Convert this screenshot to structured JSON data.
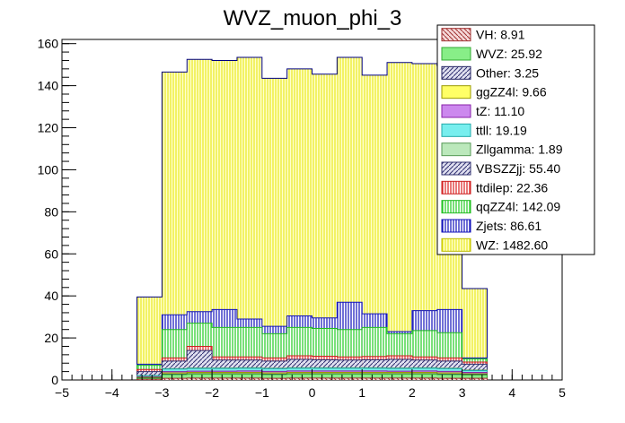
{
  "chart_data": {
    "type": "bar",
    "title": "WVZ_muon_phi_3",
    "xlabel": "",
    "ylabel": "",
    "xlim": [
      -5,
      5
    ],
    "ylim": [
      0,
      162
    ],
    "x_ticks": [
      "−5",
      "−4",
      "−3",
      "−2",
      "−1",
      "0",
      "1",
      "2",
      "3",
      "4",
      "5"
    ],
    "y_ticks": [
      "0",
      "20",
      "40",
      "60",
      "80",
      "100",
      "120",
      "140",
      "160"
    ],
    "bin_edges": [
      -3.5,
      -3.0,
      -2.5,
      -2.0,
      -1.5,
      -1.0,
      -0.5,
      0.0,
      0.5,
      1.0,
      1.5,
      2.0,
      2.5,
      3.0,
      3.5
    ],
    "stack_order": "bottom-to-top cumulative totals",
    "series": [
      {
        "name": "VH",
        "label": "VH: 8.91",
        "pattern": "hatch-diag-down",
        "color": "#a03030",
        "fill": "#f2c8c8",
        "cumulative": [
          0.3,
          0.8,
          0.9,
          0.9,
          0.9,
          0.8,
          0.9,
          0.9,
          0.9,
          0.9,
          0.9,
          0.9,
          0.8,
          0.8
        ]
      },
      {
        "name": "WVZ",
        "label": "WVZ: 25.92",
        "pattern": "solid",
        "color": "#33aa33",
        "fill": "#88ee88",
        "cumulative": [
          0.8,
          2.6,
          2.8,
          2.8,
          2.8,
          2.6,
          2.8,
          2.8,
          2.8,
          2.8,
          2.8,
          2.8,
          2.6,
          2.4
        ]
      },
      {
        "name": "Other",
        "label": "Other: 3.25",
        "pattern": "hatch-diag-up",
        "color": "#202060",
        "fill": "#b8b8e8",
        "cumulative": [
          0.9,
          2.8,
          3.0,
          3.0,
          3.0,
          2.8,
          3.0,
          3.0,
          3.0,
          3.0,
          3.0,
          3.0,
          2.8,
          2.6
        ]
      },
      {
        "name": "ggZZ4l",
        "label": "ggZZ4l: 9.66",
        "pattern": "solid",
        "color": "#999900",
        "fill": "#ffff66",
        "cumulative": [
          1.2,
          3.4,
          3.6,
          3.6,
          3.6,
          3.4,
          3.6,
          3.6,
          3.6,
          3.6,
          3.6,
          3.6,
          3.4,
          3.0
        ]
      },
      {
        "name": "tZ",
        "label": "tZ: 11.10",
        "pattern": "solid",
        "color": "#8822aa",
        "fill": "#cc88ee",
        "cumulative": [
          1.5,
          4.0,
          4.2,
          4.2,
          4.3,
          4.1,
          4.3,
          4.3,
          4.3,
          4.3,
          4.2,
          4.3,
          4.1,
          3.6
        ]
      },
      {
        "name": "ttll",
        "label": "ttll: 19.19",
        "pattern": "solid",
        "color": "#22aaaa",
        "fill": "#77eeee",
        "cumulative": [
          2.0,
          5.2,
          5.5,
          5.5,
          5.6,
          5.4,
          5.6,
          5.6,
          5.6,
          5.6,
          5.5,
          5.6,
          5.4,
          4.5
        ]
      },
      {
        "name": "Zllgamma",
        "label": "Zllgamma: 1.89",
        "pattern": "solid",
        "color": "#559955",
        "fill": "#bbe8bb",
        "cumulative": [
          2.1,
          5.4,
          5.7,
          5.7,
          5.8,
          5.6,
          5.8,
          5.8,
          5.8,
          5.8,
          5.7,
          5.8,
          5.6,
          4.7
        ]
      },
      {
        "name": "VBSZZjj",
        "label": "VBSZZjj: 55.40",
        "pattern": "hatch-diag-up",
        "color": "#303070",
        "fill": "#d0d0e8",
        "cumulative": [
          4.0,
          9.0,
          14.0,
          9.5,
          9.5,
          9.0,
          9.8,
          9.6,
          9.5,
          9.6,
          9.8,
          9.5,
          9.0,
          7.5
        ]
      },
      {
        "name": "ttdilep",
        "label": "ttdilep: 22.36",
        "pattern": "vlines",
        "color": "#cc2222",
        "fill": "#ffffff",
        "cumulative": [
          5.0,
          10.5,
          16.0,
          11.0,
          11.0,
          10.5,
          11.5,
          11.3,
          11.0,
          11.2,
          11.5,
          11.0,
          10.5,
          8.5
        ]
      },
      {
        "name": "qqZZ4l",
        "label": "qqZZ4l: 142.09",
        "pattern": "vlines",
        "color": "#22bb22",
        "fill": "#ffffff",
        "cumulative": [
          7.0,
          24.0,
          27.0,
          25.0,
          25.0,
          22.0,
          25.0,
          24.5,
          24.0,
          25.0,
          22.0,
          23.5,
          22.5,
          10.0
        ]
      },
      {
        "name": "Zjets",
        "label": "Zjets: 86.61",
        "pattern": "vlines",
        "color": "#1111bb",
        "fill": "#ffffff",
        "cumulative": [
          7.5,
          31.0,
          32.5,
          33.5,
          29.0,
          25.5,
          30.5,
          29.5,
          37.0,
          31.5,
          23.0,
          33.0,
          33.5,
          10.5
        ]
      },
      {
        "name": "WZ",
        "label": "WZ: 1482.60",
        "pattern": "vlines",
        "color": "#bbbb00",
        "fill": "#ffffcc",
        "cumulative": [
          39.5,
          146.5,
          152.5,
          152.0,
          153.5,
          143.5,
          148.0,
          145.5,
          153.5,
          145.0,
          151.0,
          150.5,
          149.5,
          43.5
        ]
      }
    ]
  }
}
